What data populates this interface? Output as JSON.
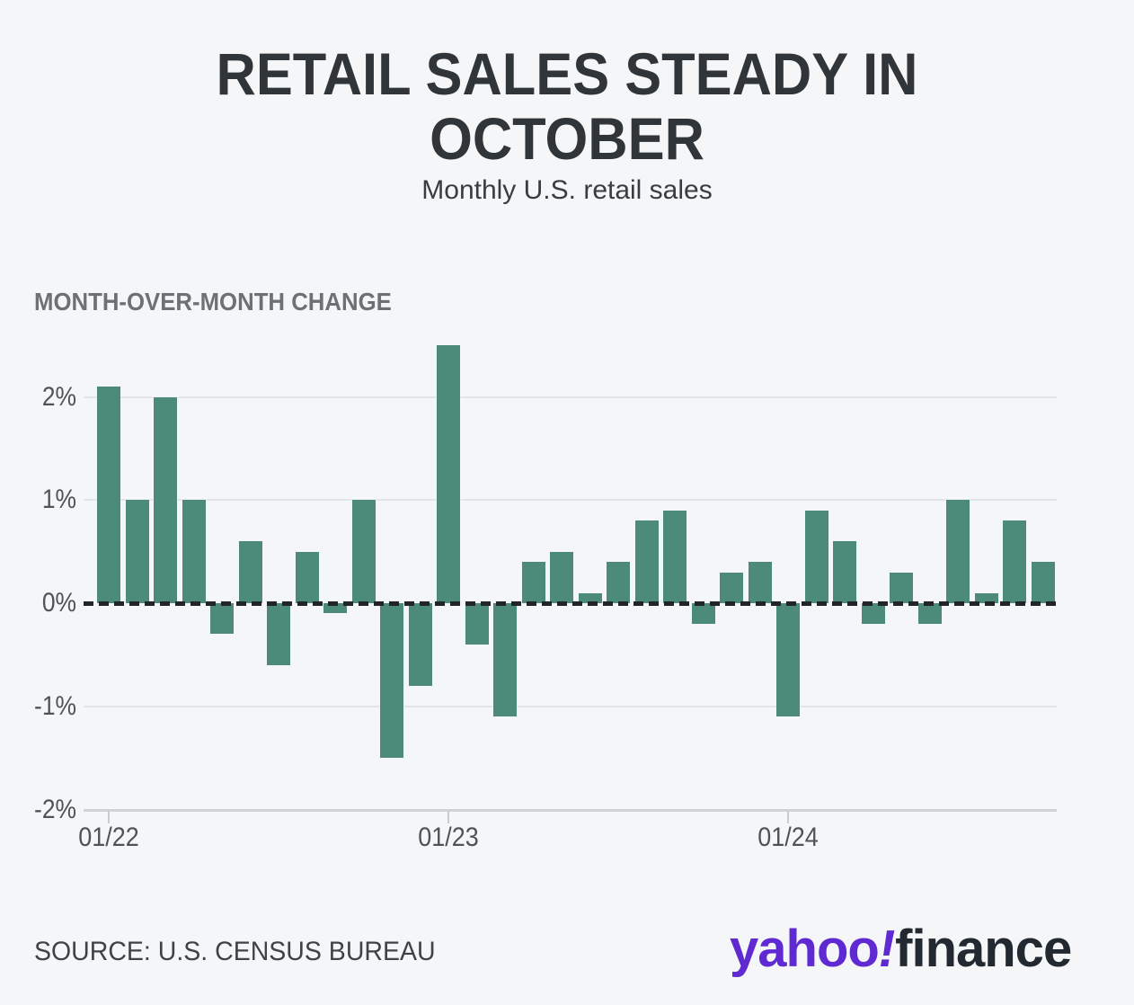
{
  "header": {
    "title_line1": "RETAIL SALES STEADY IN",
    "title_line2": "OCTOBER",
    "subtitle": "Monthly U.S. retail sales"
  },
  "section_label": "MONTH-OVER-MONTH CHANGE",
  "source": "SOURCE: U.S. CENSUS BUREAU",
  "logo": {
    "brand": "yahoo",
    "exclamation": "!",
    "suffix": "finance",
    "brand_color": "#5f2ad2",
    "suffix_color": "#232930"
  },
  "chart_data": {
    "type": "bar",
    "title": "MONTH-OVER-MONTH CHANGE",
    "subtitle": "Monthly U.S. retail sales",
    "xlabel": "",
    "ylabel": "Month-over-month change (%)",
    "categories": [
      "01/22",
      "02/22",
      "03/22",
      "04/22",
      "05/22",
      "06/22",
      "07/22",
      "08/22",
      "09/22",
      "10/22",
      "11/22",
      "12/22",
      "01/23",
      "02/23",
      "03/23",
      "04/23",
      "05/23",
      "06/23",
      "07/23",
      "08/23",
      "09/23",
      "10/23",
      "11/23",
      "12/23",
      "01/24",
      "02/24",
      "03/24",
      "04/24",
      "05/24",
      "06/24",
      "07/24",
      "08/24",
      "09/24",
      "10/24"
    ],
    "values": [
      2.1,
      1,
      2,
      1,
      -0.3,
      0.6,
      -0.6,
      0.5,
      -0.1,
      1,
      -1.5,
      -0.8,
      2.5,
      -0.4,
      -1.1,
      0.4,
      0.5,
      0.1,
      0.4,
      0.8,
      0.9,
      -0.2,
      0.3,
      0.4,
      -1.1,
      0.9,
      0.6,
      -0.2,
      0.3,
      -0.2,
      1,
      0.1,
      0.8,
      0.4
    ],
    "y_ticks": [
      "2%",
      "1%",
      "0%",
      "-1%",
      "-2%"
    ],
    "y_tick_values": [
      2,
      1,
      0,
      -1,
      -2
    ],
    "x_tick_labels": [
      "01/22",
      "01/23",
      "01/24"
    ],
    "x_tick_indices": [
      0,
      12,
      24
    ],
    "ylim": [
      -2,
      2.6
    ],
    "grid": "horizontal",
    "zero_line": "dashed-black",
    "legend": "none",
    "bar_color": "#4b8b77",
    "background_color": "#f5f6f8"
  }
}
